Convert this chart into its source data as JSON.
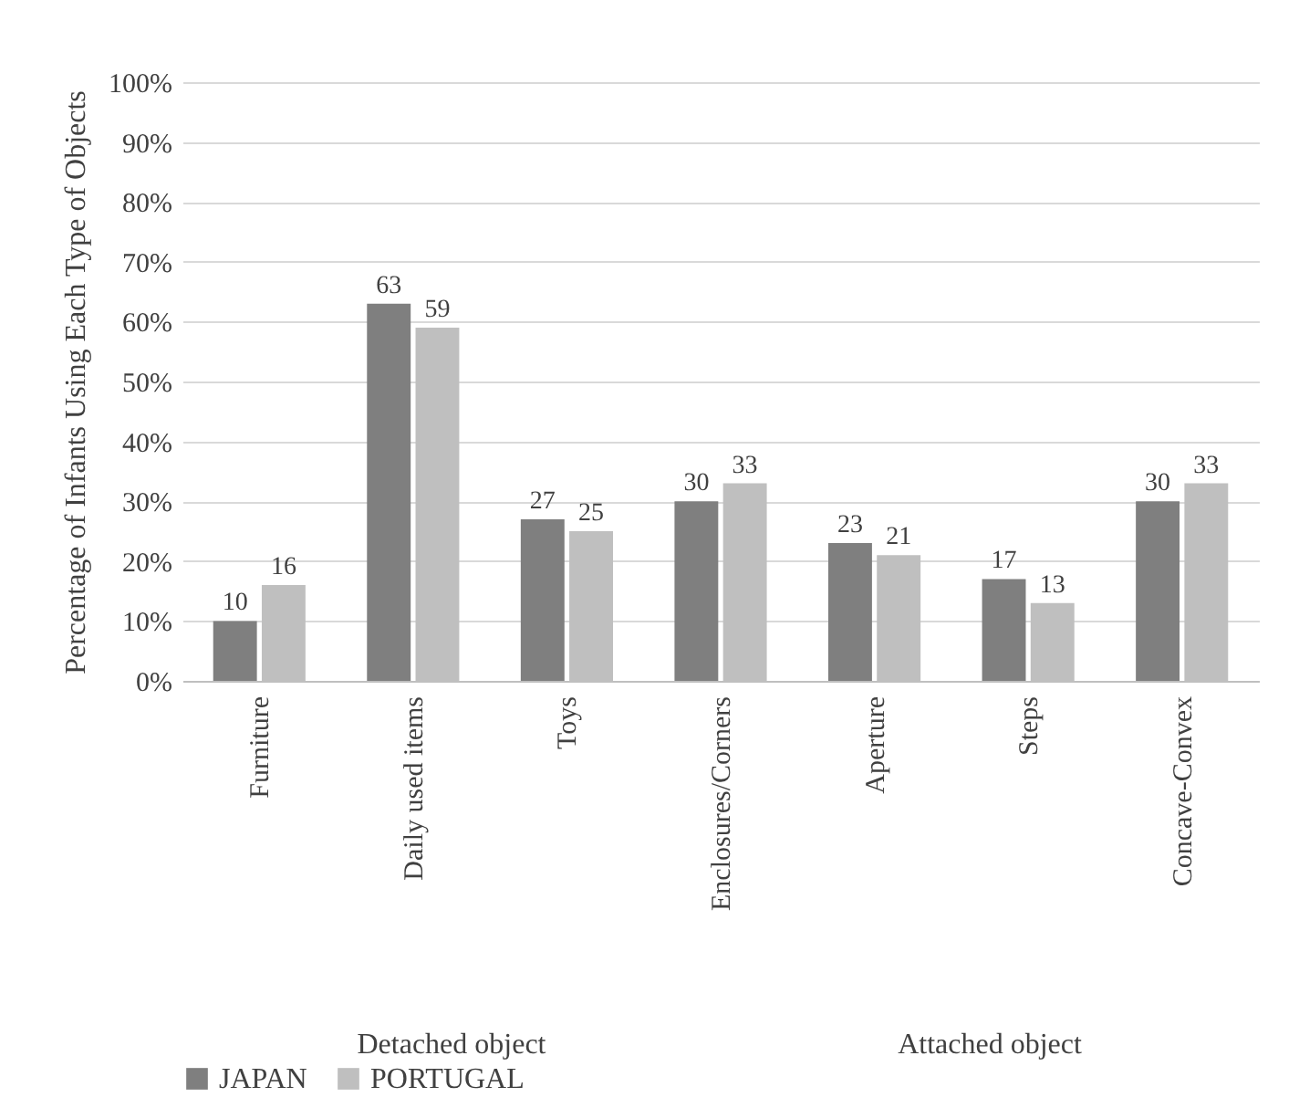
{
  "chart_data": {
    "type": "bar",
    "ylabel": "Percentage of Infants Using Each Type of Objects",
    "categories": [
      "Furniture",
      "Daily used items",
      "Toys",
      "Enclosures/Corners",
      "Aperture",
      "Steps",
      "Concave-Convex"
    ],
    "series": [
      {
        "name": "JAPAN",
        "color": "#7f7f7f",
        "values": [
          10,
          63,
          27,
          30,
          23,
          17,
          30
        ]
      },
      {
        "name": "PORTUGAL",
        "color": "#bfbfbf",
        "values": [
          16,
          59,
          25,
          33,
          21,
          13,
          33
        ]
      }
    ],
    "ylim": [
      0,
      100
    ],
    "yticks": [
      {
        "value": 0,
        "label": "0%"
      },
      {
        "value": 10,
        "label": "10%"
      },
      {
        "value": 20,
        "label": "20%"
      },
      {
        "value": 30,
        "label": "30%"
      },
      {
        "value": 40,
        "label": "40%"
      },
      {
        "value": 50,
        "label": "50%"
      },
      {
        "value": 60,
        "label": "60%"
      },
      {
        "value": 70,
        "label": "70%"
      },
      {
        "value": 80,
        "label": "80%"
      },
      {
        "value": 90,
        "label": "90%"
      },
      {
        "value": 100,
        "label": "100%"
      }
    ],
    "grid": "y",
    "data_labels": true,
    "legend": "bottom",
    "annotations": [
      "Detached object",
      "Attached object"
    ]
  }
}
